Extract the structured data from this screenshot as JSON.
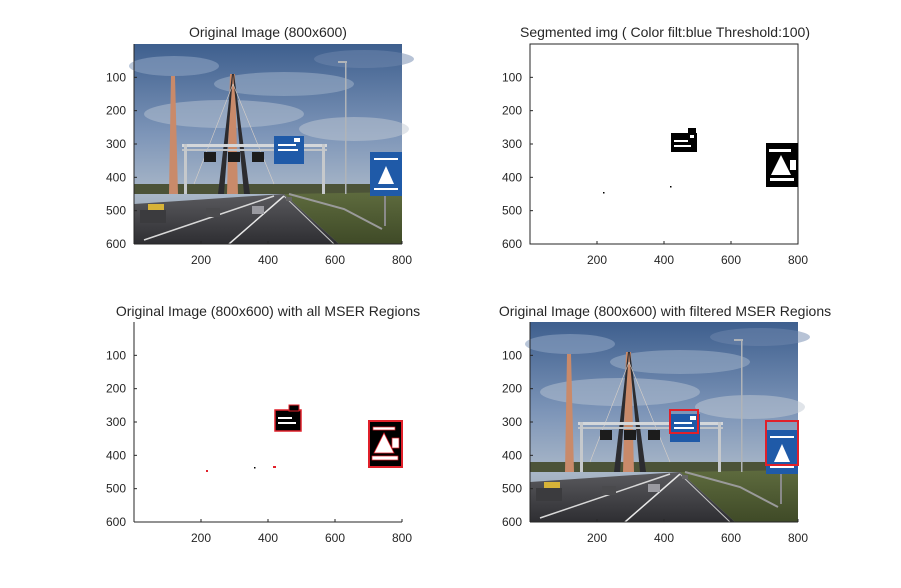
{
  "figure": {
    "subplot_titles": [
      "Original Image (800x600)",
      "Segmented img ( Color filt:blue Threshold:100)",
      "Original Image (800x600) with all MSER Regions",
      "Original Image (800x600) with filtered MSER Regions"
    ]
  },
  "chart_data": [
    {
      "type": "image",
      "title": "Original Image (800x600)",
      "xlim": [
        0,
        800
      ],
      "ylim": [
        600,
        0
      ],
      "x_ticks": [
        200,
        400,
        600,
        800
      ],
      "y_ticks": [
        100,
        200,
        300,
        400,
        500,
        600
      ],
      "content": "photo of highway with overhead gantry and blue road signs"
    },
    {
      "type": "image",
      "title": "Segmented img ( Color filt:blue Threshold:100)",
      "xlim": [
        0,
        800
      ],
      "ylim": [
        600,
        0
      ],
      "x_ticks": [
        200,
        400,
        600,
        800
      ],
      "y_ticks": [
        100,
        200,
        300,
        400,
        500,
        600
      ],
      "content": "binary mask with white background and black blobs at sign locations"
    },
    {
      "type": "image",
      "title": "Original Image (800x600) with all MSER Regions",
      "xlim": [
        0,
        800
      ],
      "ylim": [
        600,
        0
      ],
      "x_ticks": [
        200,
        400,
        600,
        800
      ],
      "y_ticks": [
        100,
        200,
        300,
        400,
        500,
        600
      ],
      "content": "mask with red MSER region outlines"
    },
    {
      "type": "image",
      "title": "Original Image (800x600) with filtered MSER Regions",
      "xlim": [
        0,
        800
      ],
      "ylim": [
        600,
        0
      ],
      "x_ticks": [
        200,
        400,
        600,
        800
      ],
      "y_ticks": [
        100,
        200,
        300,
        400,
        500,
        600
      ],
      "content": "photo with red rectangles around detected blue signs"
    }
  ],
  "colors": {
    "axis": "#262626",
    "sky": "#5b7aa6",
    "sign_blue": "#1f5aa8",
    "mser_red": "#e0202a"
  }
}
